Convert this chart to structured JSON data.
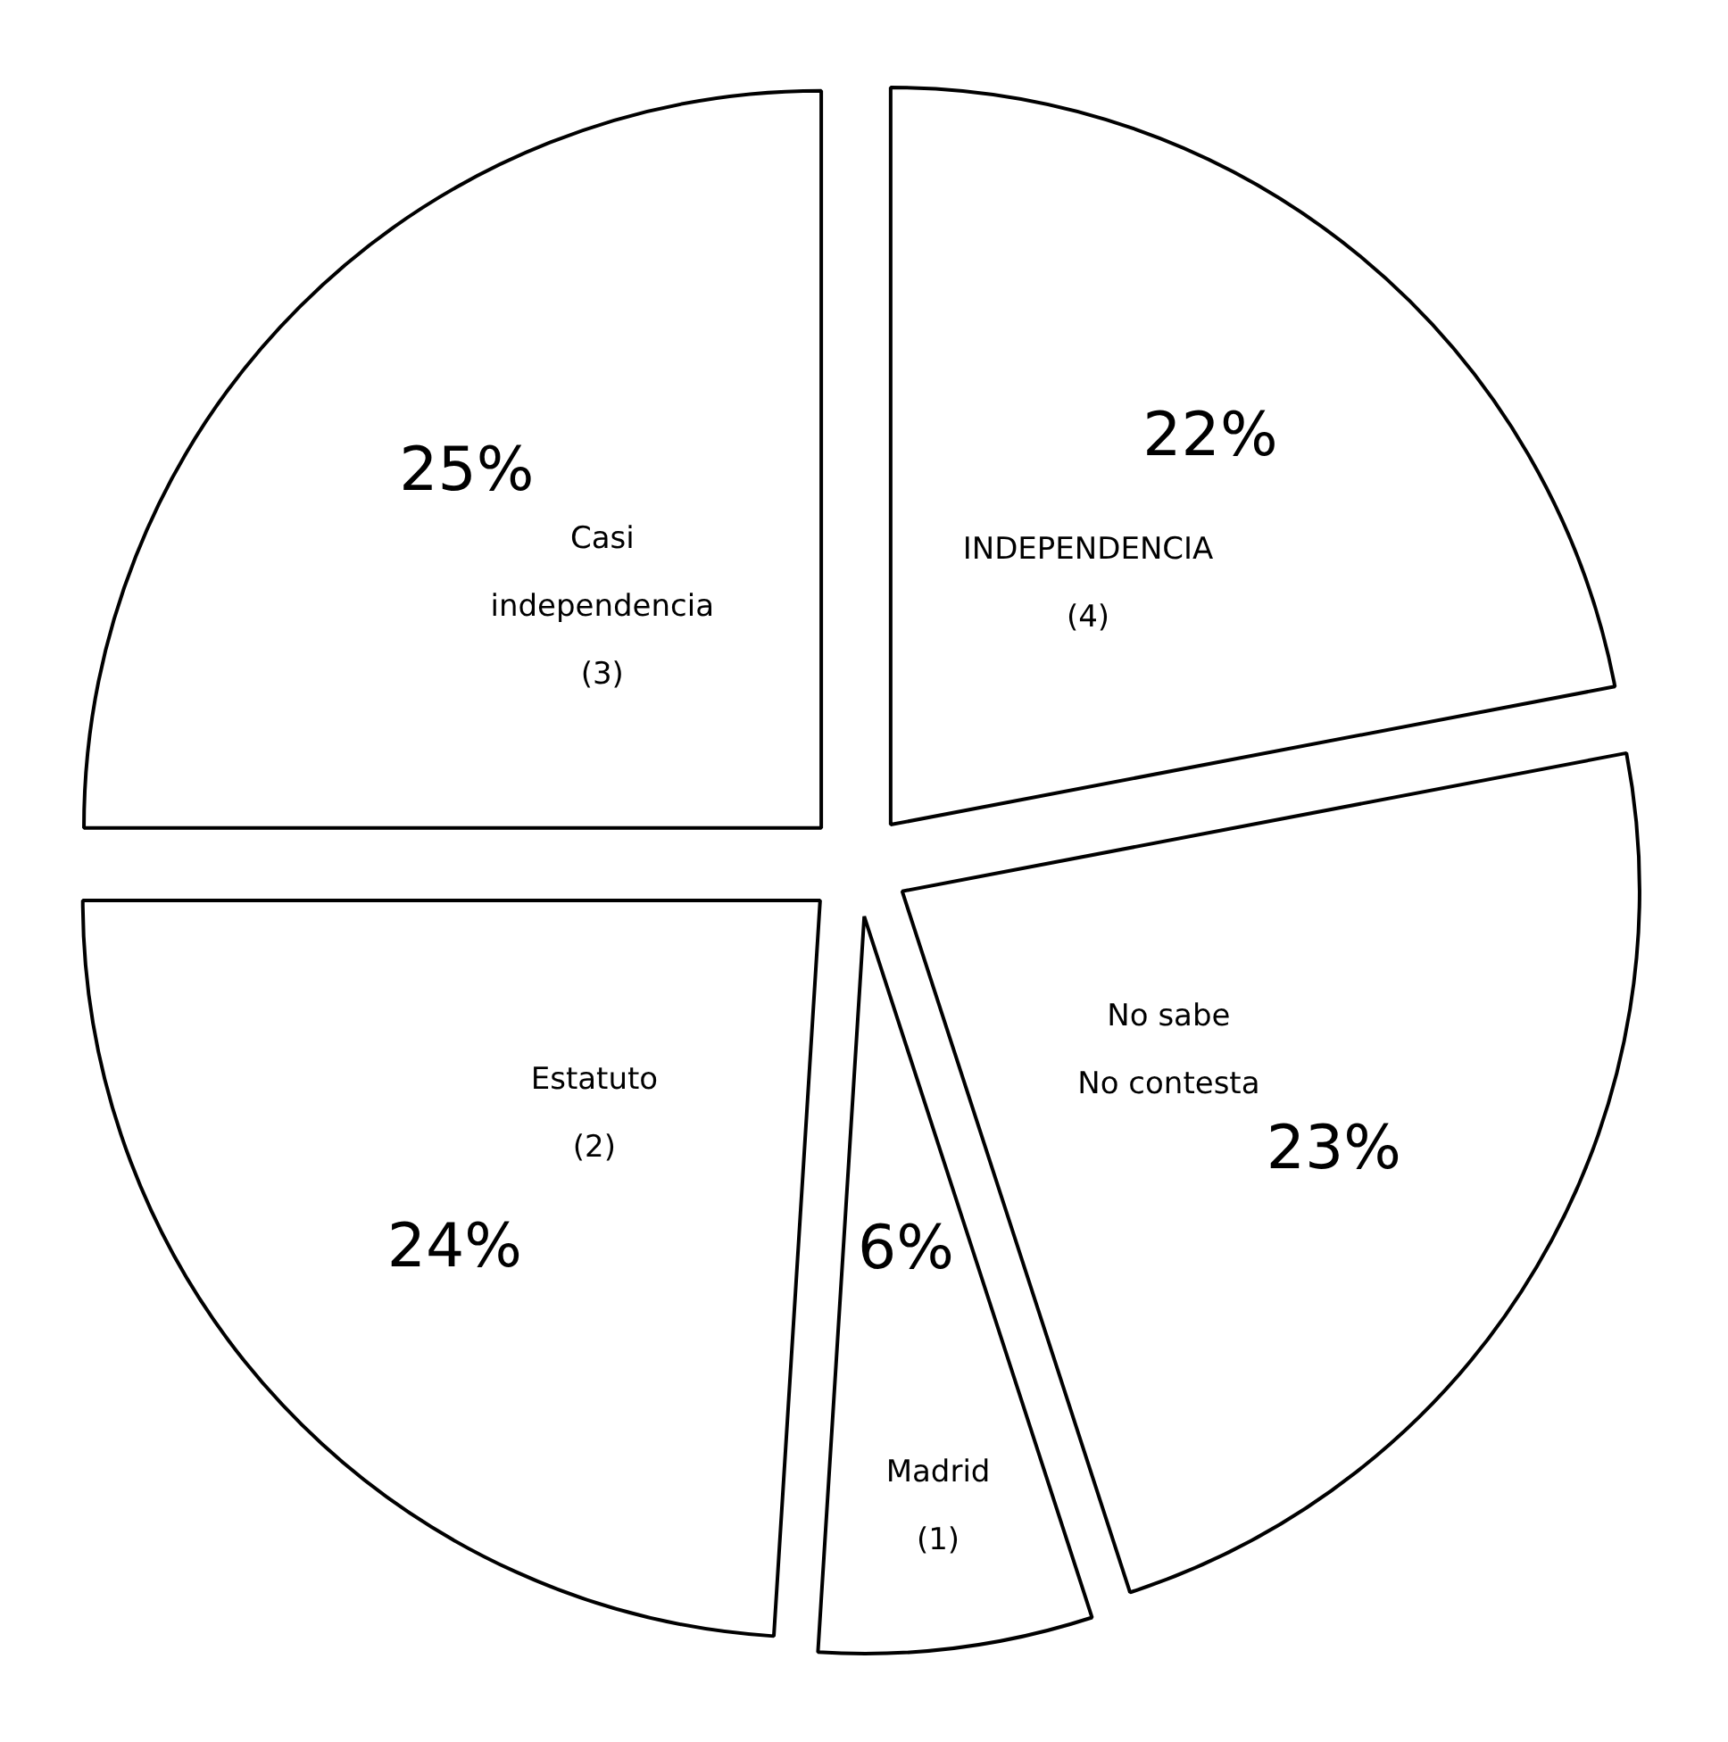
{
  "chart_data": {
    "type": "pie",
    "categories": [
      "INDEPENDENCIA\n(4)",
      "No sabe\nNo contesta",
      "Madrid\n(1)",
      "Estatuto\n(2)",
      "Casi\nindependencia\n(3)"
    ],
    "values": [
      22,
      23,
      6,
      24,
      25
    ],
    "value_labels": [
      "22%",
      "23%",
      "6%",
      "24%",
      "25%"
    ],
    "colors": [
      "#ffffff",
      "#ffffff",
      "#ffffff",
      "#ffffff",
      "#ffffff"
    ]
  }
}
